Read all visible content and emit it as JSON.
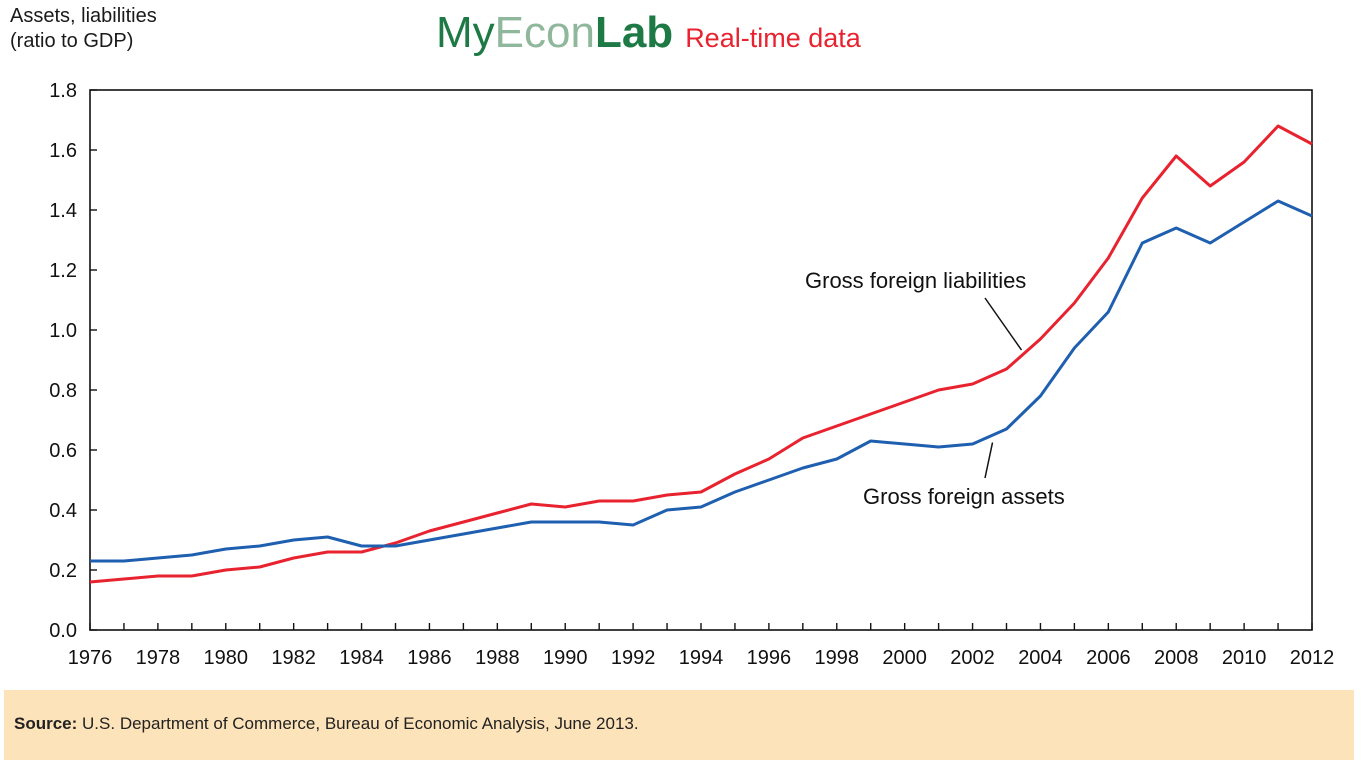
{
  "header": {
    "y_axis_label_line1": "Assets, liabilities",
    "y_axis_label_line2": "(ratio to GDP)",
    "brand_my": "My",
    "brand_econ": "Econ",
    "brand_lab": "Lab",
    "brand_realtime": "Real-time data"
  },
  "source": {
    "label": "Source:",
    "text": "U.S. Department of Commerce, Bureau of Economic Analysis, June 2013."
  },
  "colors": {
    "liabilities": "#e8232f",
    "assets": "#1f5fb0",
    "source_bg": "#fde3b9",
    "brand_green": "#1e7a44"
  },
  "chart_data": {
    "type": "line",
    "ylabel": "Assets, liabilities (ratio to GDP)",
    "xlabel": "",
    "ylim": [
      0,
      1.8
    ],
    "xlim": [
      1976,
      2012
    ],
    "yticks": [
      "0.0",
      "0.2",
      "0.4",
      "0.6",
      "0.8",
      "1.0",
      "1.2",
      "1.4",
      "1.6",
      "1.8"
    ],
    "xticks": [
      "1976",
      "1978",
      "1980",
      "1982",
      "1984",
      "1986",
      "1988",
      "1990",
      "1992",
      "1994",
      "1996",
      "1998",
      "2000",
      "2002",
      "2004",
      "2006",
      "2008",
      "2010",
      "2012"
    ],
    "grid": false,
    "x": [
      1976,
      1977,
      1978,
      1979,
      1980,
      1981,
      1982,
      1983,
      1984,
      1985,
      1986,
      1987,
      1988,
      1989,
      1990,
      1991,
      1992,
      1993,
      1994,
      1995,
      1996,
      1997,
      1998,
      1999,
      2000,
      2001,
      2002,
      2003,
      2004,
      2005,
      2006,
      2007,
      2008,
      2009,
      2010,
      2011,
      2012
    ],
    "series": [
      {
        "name": "Gross foreign liabilities",
        "color": "#e8232f",
        "values": [
          0.16,
          0.17,
          0.18,
          0.18,
          0.2,
          0.21,
          0.24,
          0.26,
          0.26,
          0.29,
          0.33,
          0.36,
          0.39,
          0.42,
          0.41,
          0.43,
          0.43,
          0.45,
          0.46,
          0.52,
          0.57,
          0.64,
          0.68,
          0.72,
          0.76,
          0.8,
          0.82,
          0.87,
          0.97,
          1.09,
          1.24,
          1.44,
          1.58,
          1.48,
          1.56,
          1.68,
          1.62
        ]
      },
      {
        "name": "Gross foreign assets",
        "color": "#1f5fb0",
        "values": [
          0.23,
          0.23,
          0.24,
          0.25,
          0.27,
          0.28,
          0.3,
          0.31,
          0.28,
          0.28,
          0.3,
          0.32,
          0.34,
          0.36,
          0.36,
          0.36,
          0.35,
          0.4,
          0.41,
          0.46,
          0.5,
          0.54,
          0.57,
          0.63,
          0.62,
          0.61,
          0.62,
          0.67,
          0.78,
          0.94,
          1.06,
          1.29,
          1.34,
          1.29,
          1.36,
          1.43,
          1.38
        ]
      }
    ],
    "annotations": [
      {
        "text": "Gross foreign liabilities",
        "series": "Gross foreign liabilities",
        "at_x": 2003.5
      },
      {
        "text": "Gross foreign assets",
        "series": "Gross foreign assets",
        "at_x": 2002.5
      }
    ]
  }
}
